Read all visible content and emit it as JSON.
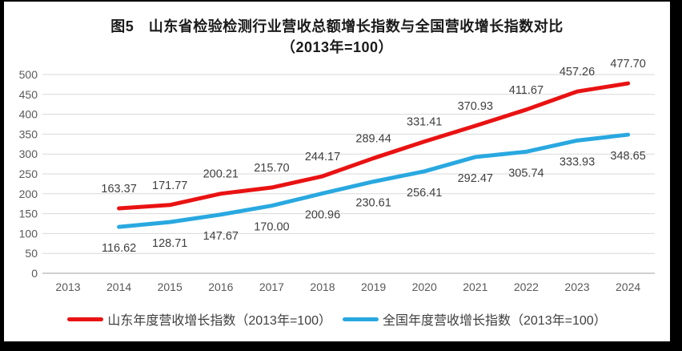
{
  "title": {
    "line1": "图5　山东省检验检测行业营收总额增长指数与全国营收增长指数对比",
    "line2": "（2013年=100）"
  },
  "colors": {
    "shandong_line": "#e91212",
    "national_line": "#29a8e0",
    "gridline": "#d9d9d9",
    "axis_line": "#c0c0c0",
    "tick_label": "#595959",
    "data_label": "#3f3f3f",
    "title_text": "#1a1a1a",
    "frame": "#000000",
    "background": "#ffffff"
  },
  "chart_data": {
    "type": "line",
    "title": "图5　山东省检验检测行业营收总额增长指数与全国营收增长指数对比（2013年=100）",
    "x": [
      2013,
      2014,
      2015,
      2016,
      2017,
      2018,
      2019,
      2020,
      2021,
      2022,
      2023,
      2024
    ],
    "series": [
      {
        "key": "shandong",
        "name": "山东年度营收增长指数（2013年=100）",
        "color": "#e91212",
        "start_x": 2014,
        "values": [
          163.37,
          171.77,
          200.21,
          215.7,
          244.17,
          289.44,
          331.41,
          370.93,
          411.67,
          457.26,
          477.7
        ],
        "label_position": "above"
      },
      {
        "key": "national",
        "name": "全国年度营收增长指数（2013年=100）",
        "color": "#29a8e0",
        "start_x": 2014,
        "values": [
          116.62,
          128.71,
          147.67,
          170.0,
          200.96,
          230.61,
          256.41,
          292.47,
          305.74,
          333.93,
          348.65
        ],
        "label_position": "below"
      }
    ],
    "ylim": [
      0,
      500
    ],
    "yticks": [
      0,
      50,
      100,
      150,
      200,
      250,
      300,
      350,
      400,
      450,
      500
    ],
    "grid": true,
    "legend_position": "bottom",
    "data_labels_decimals": 2
  }
}
